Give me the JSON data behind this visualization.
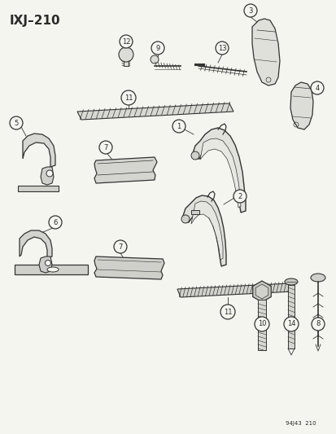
{
  "title": "IXJ–210",
  "footer": "94J43  210",
  "bg_color": "#f5f5f0",
  "fg_color": "#2a2a2a",
  "fig_width": 4.14,
  "fig_height": 5.33,
  "dpi": 100,
  "line_color": "#333333",
  "fill_color": "#e8e8e2"
}
